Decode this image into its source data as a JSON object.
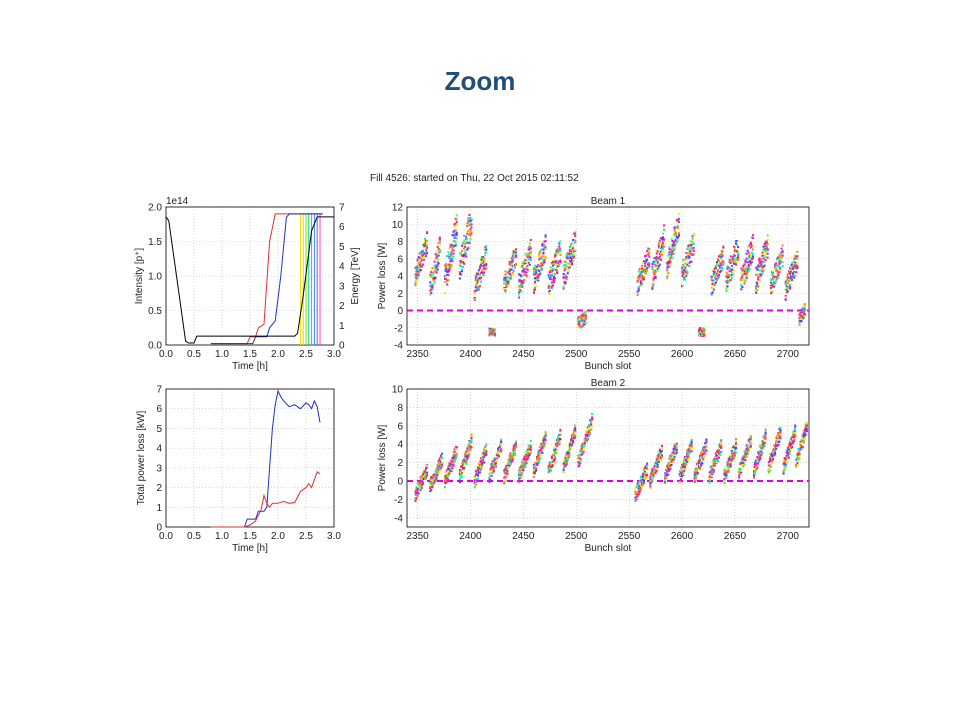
{
  "slide": {
    "title": "Zoom",
    "title_color": "#1f4e79"
  },
  "figure_title": "Fill 4526: started on Thu, 22 Oct 2015 02:11:52",
  "chart_data": [
    {
      "id": "intensity",
      "type": "line",
      "xlabel": "Time [h]",
      "ylabel": "Intensity [p⁺]",
      "y2label": "Energy [TeV]",
      "multiplier": "1e14",
      "xlim": [
        0,
        3
      ],
      "ylim": [
        0,
        2
      ],
      "y2lim": [
        0,
        7
      ],
      "xticks": [
        "0.0",
        "0.5",
        "1.0",
        "1.5",
        "2.0",
        "2.5",
        "3.0"
      ],
      "yticks": [
        "0.0",
        "0.5",
        "1.0",
        "1.5",
        "2.0"
      ],
      "y2ticks": [
        "0",
        "1",
        "2",
        "3",
        "4",
        "5",
        "6",
        "7"
      ],
      "grid": true,
      "series": [
        {
          "color": "#e03030",
          "axis": "y",
          "x": [
            0.8,
            1.45,
            1.5,
            1.6,
            1.65,
            1.75,
            1.85,
            1.95,
            2.0,
            2.8
          ],
          "y": [
            0.02,
            0.02,
            0.12,
            0.12,
            0.25,
            0.3,
            1.5,
            1.9,
            1.9,
            1.9
          ]
        },
        {
          "color": "#2030c8",
          "axis": "y",
          "x": [
            0.8,
            1.55,
            1.6,
            1.8,
            1.85,
            1.95,
            2.05,
            2.15,
            2.2,
            2.8
          ],
          "y": [
            0.02,
            0.02,
            0.12,
            0.12,
            0.25,
            0.35,
            1.0,
            1.85,
            1.9,
            1.9
          ]
        },
        {
          "color": "#000000",
          "axis": "y2",
          "x": [
            0,
            0.05,
            0.35,
            0.4,
            0.5,
            0.55,
            1.4,
            1.5,
            2.3,
            2.35,
            2.45,
            2.6,
            2.7,
            3.0
          ],
          "y": [
            6.5,
            6.3,
            0.2,
            0.1,
            0.1,
            0.45,
            0.45,
            0.45,
            0.45,
            0.6,
            2.5,
            5.8,
            6.5,
            6.5
          ]
        }
      ],
      "energy_markers": {
        "x": [
          2.4,
          2.45,
          2.5,
          2.55,
          2.6,
          2.65,
          2.7,
          2.75
        ],
        "colors": [
          "#ffd700",
          "#c8e000",
          "#80e000",
          "#00d080",
          "#00c8ff",
          "#4080ff",
          "#a040ff",
          "#ff40c0"
        ]
      }
    },
    {
      "id": "beam1",
      "type": "scatter",
      "title": "Beam 1",
      "xlabel": "Bunch slot",
      "ylabel": "Power loss [W]",
      "xlim": [
        2340,
        2720
      ],
      "ylim": [
        -4,
        12
      ],
      "xticks": [
        "2350",
        "2400",
        "2450",
        "2500",
        "2550",
        "2600",
        "2650",
        "2700"
      ],
      "yticks": [
        "-4",
        "-2",
        "0",
        "2",
        "4",
        "6",
        "8",
        "10",
        "12"
      ],
      "grid": true,
      "groups": [
        {
          "start": 2348,
          "count": 12,
          "base": 4.0,
          "slope": 0.35,
          "spread": 2.5
        },
        {
          "start": 2362,
          "count": 10,
          "base": 3.0,
          "slope": 0.45,
          "spread": 3.0
        },
        {
          "start": 2376,
          "count": 12,
          "base": 3.5,
          "slope": 0.55,
          "spread": 3.5
        },
        {
          "start": 2390,
          "count": 12,
          "base": 5.0,
          "slope": 0.5,
          "spread": 3.5
        },
        {
          "start": 2404,
          "count": 12,
          "base": 2.5,
          "slope": 0.35,
          "spread": 3.0
        },
        {
          "start": 2418,
          "count": 6,
          "base": -2.5,
          "slope": 0.0,
          "spread": 0.8
        },
        {
          "start": 2432,
          "count": 12,
          "base": 3.0,
          "slope": 0.3,
          "spread": 2.5
        },
        {
          "start": 2446,
          "count": 12,
          "base": 3.0,
          "slope": 0.35,
          "spread": 3.0
        },
        {
          "start": 2460,
          "count": 12,
          "base": 3.5,
          "slope": 0.35,
          "spread": 3.0
        },
        {
          "start": 2474,
          "count": 12,
          "base": 3.0,
          "slope": 0.35,
          "spread": 3.0
        },
        {
          "start": 2488,
          "count": 12,
          "base": 4.0,
          "slope": 0.35,
          "spread": 3.0
        },
        {
          "start": 2502,
          "count": 8,
          "base": -1.5,
          "slope": 0.1,
          "spread": 1.5
        },
        {
          "start": 2558,
          "count": 12,
          "base": 3.0,
          "slope": 0.3,
          "spread": 2.5
        },
        {
          "start": 2572,
          "count": 12,
          "base": 4.0,
          "slope": 0.4,
          "spread": 3.0
        },
        {
          "start": 2586,
          "count": 12,
          "base": 5.0,
          "slope": 0.45,
          "spread": 3.0
        },
        {
          "start": 2600,
          "count": 12,
          "base": 4.0,
          "slope": 0.35,
          "spread": 3.0
        },
        {
          "start": 2616,
          "count": 6,
          "base": -2.5,
          "slope": 0.0,
          "spread": 1.0
        },
        {
          "start": 2628,
          "count": 12,
          "base": 3.0,
          "slope": 0.3,
          "spread": 2.5
        },
        {
          "start": 2642,
          "count": 12,
          "base": 3.5,
          "slope": 0.35,
          "spread": 3.0
        },
        {
          "start": 2656,
          "count": 12,
          "base": 3.5,
          "slope": 0.35,
          "spread": 3.0
        },
        {
          "start": 2670,
          "count": 12,
          "base": 3.5,
          "slope": 0.35,
          "spread": 3.0
        },
        {
          "start": 2684,
          "count": 12,
          "base": 3.0,
          "slope": 0.3,
          "spread": 2.5
        },
        {
          "start": 2698,
          "count": 12,
          "base": 2.5,
          "slope": 0.3,
          "spread": 2.5
        },
        {
          "start": 2711,
          "count": 6,
          "base": -1.0,
          "slope": 0.2,
          "spread": 1.5
        }
      ],
      "baseline": 0
    },
    {
      "id": "total",
      "type": "line",
      "xlabel": "Time [h]",
      "ylabel": "Total power loss [kW]",
      "xlim": [
        0,
        3
      ],
      "ylim": [
        0,
        7
      ],
      "xticks": [
        "0.0",
        "0.5",
        "1.0",
        "1.5",
        "2.0",
        "2.5",
        "3.0"
      ],
      "yticks": [
        "0",
        "1",
        "2",
        "3",
        "4",
        "5",
        "6",
        "7"
      ],
      "grid": true,
      "series": [
        {
          "color": "#2030c8",
          "x": [
            0.8,
            1.4,
            1.45,
            1.6,
            1.65,
            1.75,
            1.8,
            1.85,
            1.9,
            1.95,
            2.0,
            2.05,
            2.1,
            2.2,
            2.3,
            2.4,
            2.5,
            2.55,
            2.6,
            2.65,
            2.7,
            2.75
          ],
          "y": [
            0,
            0,
            0.4,
            0.4,
            0.8,
            0.8,
            1.0,
            3.0,
            5.0,
            6.2,
            6.9,
            6.6,
            6.4,
            6.1,
            6.2,
            6.0,
            6.3,
            6.2,
            6.0,
            6.4,
            6.1,
            5.3
          ]
        },
        {
          "color": "#e03030",
          "x": [
            0.8,
            1.4,
            1.5,
            1.6,
            1.7,
            1.75,
            1.8,
            1.85,
            1.9,
            2.0,
            2.1,
            2.2,
            2.3,
            2.4,
            2.5,
            2.55,
            2.6,
            2.7,
            2.75
          ],
          "y": [
            0,
            0,
            0.1,
            0.3,
            0.9,
            1.6,
            1.2,
            1.0,
            1.2,
            1.2,
            1.3,
            1.2,
            1.25,
            1.8,
            2.0,
            2.2,
            2.0,
            2.8,
            2.7
          ]
        }
      ]
    },
    {
      "id": "beam2",
      "type": "scatter",
      "title": "Beam 2",
      "xlabel": "Bunch slot",
      "ylabel": "Power loss [W]",
      "xlim": [
        2340,
        2720
      ],
      "ylim": [
        -5,
        10
      ],
      "xticks": [
        "2350",
        "2400",
        "2450",
        "2500",
        "2550",
        "2600",
        "2650",
        "2700"
      ],
      "yticks": [
        "-4",
        "-2",
        "0",
        "2",
        "4",
        "6",
        "8",
        "10"
      ],
      "grid": true,
      "groups": [
        {
          "start": 2348,
          "count": 12,
          "base": -1.5,
          "slope": 0.25,
          "spread": 1.5
        },
        {
          "start": 2362,
          "count": 12,
          "base": -0.5,
          "slope": 0.25,
          "spread": 1.5
        },
        {
          "start": 2376,
          "count": 12,
          "base": 0.0,
          "slope": 0.3,
          "spread": 1.5
        },
        {
          "start": 2390,
          "count": 12,
          "base": 0.5,
          "slope": 0.35,
          "spread": 1.5
        },
        {
          "start": 2404,
          "count": 12,
          "base": 0.0,
          "slope": 0.3,
          "spread": 1.5
        },
        {
          "start": 2418,
          "count": 12,
          "base": 0.5,
          "slope": 0.3,
          "spread": 1.5
        },
        {
          "start": 2432,
          "count": 12,
          "base": 0.5,
          "slope": 0.3,
          "spread": 1.5
        },
        {
          "start": 2446,
          "count": 12,
          "base": 0.5,
          "slope": 0.3,
          "spread": 1.5
        },
        {
          "start": 2460,
          "count": 12,
          "base": 1.0,
          "slope": 0.35,
          "spread": 1.5
        },
        {
          "start": 2474,
          "count": 12,
          "base": 1.0,
          "slope": 0.35,
          "spread": 1.5
        },
        {
          "start": 2488,
          "count": 12,
          "base": 1.5,
          "slope": 0.35,
          "spread": 1.5
        },
        {
          "start": 2502,
          "count": 14,
          "base": 2.0,
          "slope": 0.35,
          "spread": 1.5
        },
        {
          "start": 2556,
          "count": 12,
          "base": -1.5,
          "slope": 0.25,
          "spread": 1.5
        },
        {
          "start": 2570,
          "count": 12,
          "base": 0.0,
          "slope": 0.3,
          "spread": 1.5
        },
        {
          "start": 2584,
          "count": 12,
          "base": 0.5,
          "slope": 0.3,
          "spread": 1.5
        },
        {
          "start": 2598,
          "count": 12,
          "base": 0.5,
          "slope": 0.3,
          "spread": 1.5
        },
        {
          "start": 2612,
          "count": 12,
          "base": 0.5,
          "slope": 0.3,
          "spread": 1.5
        },
        {
          "start": 2626,
          "count": 12,
          "base": 0.5,
          "slope": 0.3,
          "spread": 1.5
        },
        {
          "start": 2640,
          "count": 12,
          "base": 0.5,
          "slope": 0.3,
          "spread": 1.5
        },
        {
          "start": 2654,
          "count": 12,
          "base": 1.0,
          "slope": 0.3,
          "spread": 1.5
        },
        {
          "start": 2668,
          "count": 12,
          "base": 1.0,
          "slope": 0.35,
          "spread": 1.5
        },
        {
          "start": 2682,
          "count": 12,
          "base": 1.5,
          "slope": 0.35,
          "spread": 1.5
        },
        {
          "start": 2696,
          "count": 12,
          "base": 1.5,
          "slope": 0.35,
          "spread": 1.5
        },
        {
          "start": 2708,
          "count": 11,
          "base": 2.0,
          "slope": 0.4,
          "spread": 1.5
        }
      ],
      "baseline": 0
    }
  ],
  "palette": [
    "#ff00ff",
    "#9933ff",
    "#3344ff",
    "#00e0ff",
    "#33ff66",
    "#ffee00",
    "#ff8800",
    "#ff2266"
  ]
}
